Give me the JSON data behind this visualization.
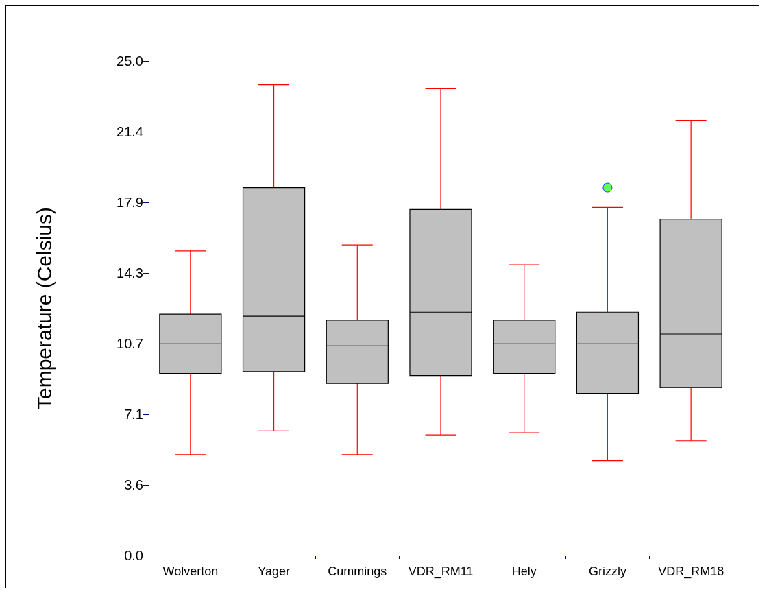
{
  "chart_data": {
    "type": "box",
    "ylabel": "Temperature (Celsius)",
    "categories": [
      "Wolverton",
      "Yager",
      "Cummings",
      "VDR_RM11",
      "Hely",
      "Grizzly",
      "VDR_RM18"
    ],
    "boxes": [
      {
        "low": 5.1,
        "q1": 9.2,
        "median": 10.7,
        "q3": 12.2,
        "high": 15.4
      },
      {
        "low": 6.3,
        "q1": 9.3,
        "median": 12.1,
        "q3": 18.6,
        "high": 23.8
      },
      {
        "low": 5.1,
        "q1": 8.7,
        "median": 10.6,
        "q3": 11.9,
        "high": 15.7
      },
      {
        "low": 6.1,
        "q1": 9.1,
        "median": 12.3,
        "q3": 17.5,
        "high": 23.6
      },
      {
        "low": 6.2,
        "q1": 9.2,
        "median": 10.7,
        "q3": 11.9,
        "high": 14.7
      },
      {
        "low": 4.8,
        "q1": 8.2,
        "median": 10.7,
        "q3": 12.3,
        "high": 17.6,
        "outliers": [
          18.6
        ]
      },
      {
        "low": 5.8,
        "q1": 8.5,
        "median": 11.2,
        "q3": 17.0,
        "high": 22.0
      }
    ],
    "color": "#c0c0c0",
    "ylim": [
      0,
      25
    ],
    "yticks": [
      {
        "value": 0,
        "label": "0.0"
      },
      {
        "value": 3.5714,
        "label": "3.6"
      },
      {
        "value": 7.1429,
        "label": "7.1"
      },
      {
        "value": 10.7143,
        "label": "10.7"
      },
      {
        "value": 14.2857,
        "label": "14.3"
      },
      {
        "value": 17.8571,
        "label": "17.9"
      },
      {
        "value": 21.4286,
        "label": "21.4"
      },
      {
        "value": 25,
        "label": "25.0"
      }
    ],
    "grid": false
  }
}
